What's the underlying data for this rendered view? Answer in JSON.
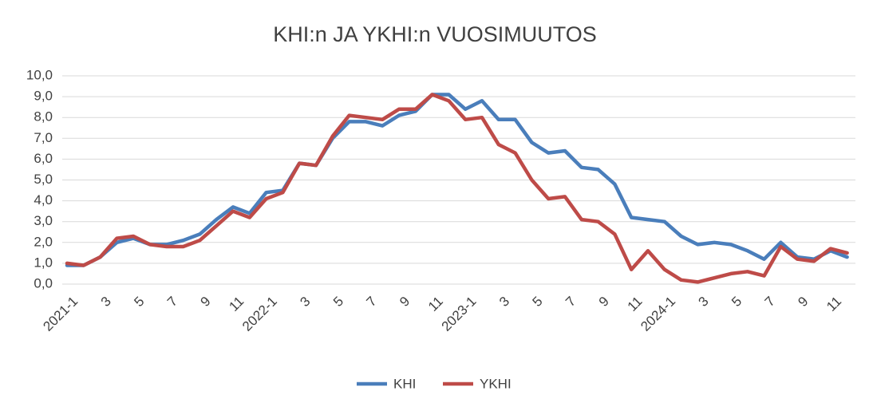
{
  "chart_data": {
    "type": "line",
    "title": "KHI:n JA YKHI:n VUOSIMUUTOS",
    "categories": [
      "2021-1",
      null,
      "3",
      null,
      "5",
      null,
      "7",
      null,
      "9",
      null,
      "11",
      null,
      "2022-1",
      null,
      "3",
      null,
      "5",
      null,
      "7",
      null,
      "9",
      null,
      "11",
      null,
      "2023-1",
      null,
      "3",
      null,
      "5",
      null,
      "7",
      null,
      "9",
      null,
      "11",
      null,
      "2024-1",
      null,
      "3",
      null,
      "5",
      null,
      "7",
      null,
      "9",
      null,
      "11",
      null
    ],
    "series": [
      {
        "name": "KHI",
        "color": "#4a7ebb",
        "values": [
          0.9,
          0.9,
          1.3,
          2.0,
          2.2,
          1.9,
          1.9,
          2.1,
          2.4,
          3.1,
          3.7,
          3.4,
          4.4,
          4.5,
          5.8,
          5.7,
          7.0,
          7.8,
          7.8,
          7.6,
          8.1,
          8.3,
          9.1,
          9.1,
          8.4,
          8.8,
          7.9,
          7.9,
          6.8,
          6.3,
          6.4,
          5.6,
          5.5,
          4.8,
          3.2,
          3.1,
          3.0,
          2.3,
          1.9,
          2.0,
          1.9,
          1.6,
          1.2,
          2.0,
          1.3,
          1.2,
          1.6,
          1.3
        ]
      },
      {
        "name": "YKHI",
        "color": "#be4b48",
        "values": [
          1.0,
          0.9,
          1.3,
          2.2,
          2.3,
          1.9,
          1.8,
          1.8,
          2.1,
          2.8,
          3.5,
          3.2,
          4.1,
          4.4,
          5.8,
          5.7,
          7.1,
          8.1,
          8.0,
          7.9,
          8.4,
          8.4,
          9.1,
          8.8,
          7.9,
          8.0,
          6.7,
          6.3,
          5.0,
          4.1,
          4.2,
          3.1,
          3.0,
          2.4,
          0.7,
          1.6,
          0.7,
          0.2,
          0.1,
          0.3,
          0.5,
          0.6,
          0.4,
          1.8,
          1.2,
          1.1,
          1.7,
          1.5
        ]
      }
    ],
    "ylim": [
      0,
      10
    ],
    "yticks": [
      {
        "value": 0,
        "label": "0,0"
      },
      {
        "value": 1,
        "label": "1,0"
      },
      {
        "value": 2,
        "label": "2,0"
      },
      {
        "value": 3,
        "label": "3,0"
      },
      {
        "value": 4,
        "label": "4,0"
      },
      {
        "value": 5,
        "label": "5,0"
      },
      {
        "value": 6,
        "label": "6,0"
      },
      {
        "value": 7,
        "label": "7,0"
      },
      {
        "value": 8,
        "label": "8,0"
      },
      {
        "value": 9,
        "label": "9,0"
      },
      {
        "value": 10,
        "label": "10,0"
      }
    ],
    "grid": true,
    "legend": "bottom"
  }
}
